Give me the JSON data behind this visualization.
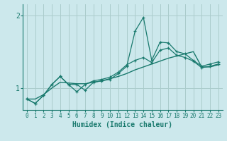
{
  "background_color": "#cce8ec",
  "grid_color": "#aacccc",
  "line_color": "#1a7a6e",
  "xlabel": "Humidex (Indice chaleur)",
  "xlim": [
    -0.5,
    23.5
  ],
  "ylim": [
    0.7,
    2.15
  ],
  "yticks": [
    1,
    2
  ],
  "ytick_labels": [
    "1",
    "2"
  ],
  "xticks": [
    0,
    1,
    2,
    3,
    4,
    5,
    6,
    7,
    8,
    9,
    10,
    11,
    12,
    13,
    14,
    15,
    16,
    17,
    18,
    19,
    20,
    21,
    22,
    23
  ],
  "series1_x": [
    0,
    1,
    2,
    3,
    4,
    5,
    6,
    7,
    8,
    9,
    10,
    11,
    12,
    13,
    14,
    15,
    16,
    17,
    18,
    19,
    20,
    21,
    22,
    23
  ],
  "series1_y": [
    0.85,
    0.79,
    0.9,
    1.05,
    1.16,
    1.05,
    1.05,
    0.97,
    1.08,
    1.1,
    1.12,
    1.2,
    1.3,
    1.78,
    1.97,
    1.38,
    1.63,
    1.62,
    1.5,
    1.47,
    1.38,
    1.3,
    1.33,
    1.36
  ],
  "series2_x": [
    0,
    1,
    2,
    3,
    4,
    5,
    6,
    7,
    8,
    9,
    10,
    11,
    12,
    13,
    14,
    15,
    16,
    17,
    18,
    19,
    20,
    21,
    22,
    23
  ],
  "series2_y": [
    0.85,
    0.79,
    0.9,
    1.05,
    1.16,
    1.05,
    0.95,
    1.05,
    1.1,
    1.12,
    1.15,
    1.22,
    1.32,
    1.38,
    1.42,
    1.35,
    1.52,
    1.55,
    1.45,
    1.42,
    1.37,
    1.28,
    1.3,
    1.33
  ],
  "series3_x": [
    0,
    1,
    2,
    3,
    4,
    5,
    6,
    7,
    8,
    9,
    10,
    11,
    12,
    13,
    14,
    15,
    16,
    17,
    18,
    19,
    20,
    21,
    22,
    23
  ],
  "series3_y": [
    0.85,
    0.85,
    0.91,
    1.0,
    1.08,
    1.07,
    1.06,
    1.06,
    1.08,
    1.1,
    1.13,
    1.16,
    1.2,
    1.25,
    1.29,
    1.33,
    1.37,
    1.41,
    1.44,
    1.47,
    1.5,
    1.29,
    1.29,
    1.32
  ]
}
